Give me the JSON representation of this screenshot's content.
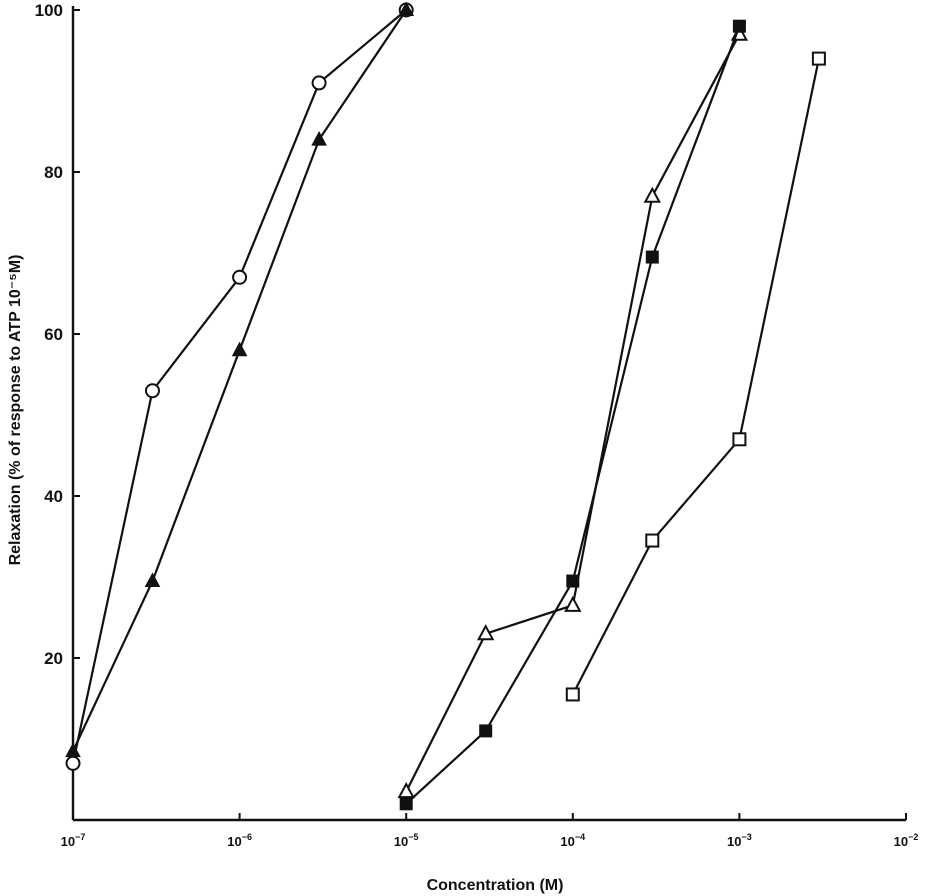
{
  "chart_data": {
    "type": "line",
    "title": "",
    "xlabel": "Concentration (M)",
    "ylabel": "Relaxation (% of response to ATP 10⁻⁵M)",
    "xscale": "log",
    "xlim": [
      1e-07,
      0.01
    ],
    "ylim": [
      0,
      100
    ],
    "x_ticks": [
      {
        "value": 1e-07,
        "base": "10",
        "exp": "−7"
      },
      {
        "value": 1e-06,
        "base": "10",
        "exp": "−6"
      },
      {
        "value": 1e-05,
        "base": "10",
        "exp": "−5"
      },
      {
        "value": 0.0001,
        "base": "10",
        "exp": "−4"
      },
      {
        "value": 0.001,
        "base": "10",
        "exp": "−3"
      },
      {
        "value": 0.01,
        "base": "10",
        "exp": "−2"
      }
    ],
    "y_ticks": [
      20,
      40,
      60,
      80,
      100
    ],
    "grid": false,
    "legend": "none",
    "series": [
      {
        "marker": "open-circle",
        "points": [
          [
            1e-07,
            7
          ],
          [
            3e-07,
            53
          ],
          [
            1e-06,
            67
          ],
          [
            3e-06,
            91
          ],
          [
            1e-05,
            100
          ]
        ]
      },
      {
        "marker": "filled-triangle",
        "points": [
          [
            1e-07,
            8.5
          ],
          [
            3e-07,
            29.5
          ],
          [
            1e-06,
            58
          ],
          [
            3e-06,
            84
          ],
          [
            1e-05,
            100
          ]
        ]
      },
      {
        "marker": "open-triangle",
        "points": [
          [
            1e-05,
            3.5
          ],
          [
            3e-05,
            23
          ],
          [
            0.0001,
            26.5
          ],
          [
            0.0003,
            77
          ],
          [
            0.001,
            97
          ]
        ]
      },
      {
        "marker": "filled-square",
        "points": [
          [
            1e-05,
            2
          ],
          [
            3e-05,
            11
          ],
          [
            0.0001,
            29.5
          ],
          [
            0.0003,
            69.5
          ],
          [
            0.001,
            98
          ]
        ]
      },
      {
        "marker": "open-square",
        "points": [
          [
            0.0001,
            15.5
          ],
          [
            0.0003,
            34.5
          ],
          [
            0.001,
            47
          ],
          [
            0.003,
            94
          ]
        ]
      }
    ]
  }
}
